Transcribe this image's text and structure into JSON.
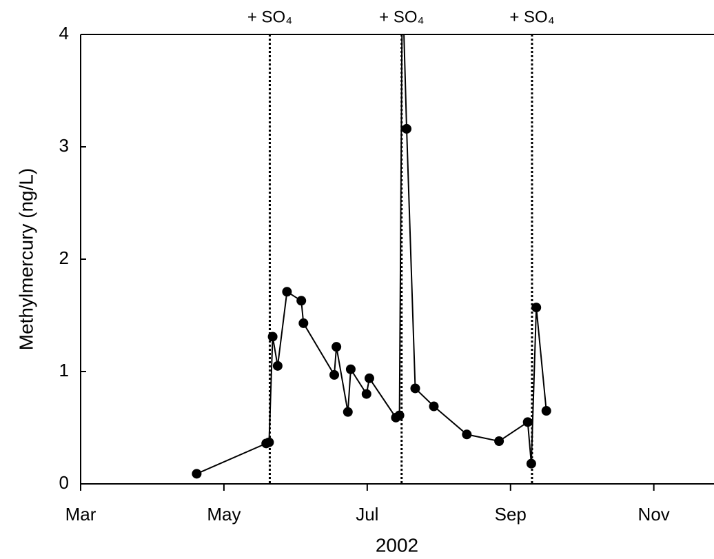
{
  "chart_data": {
    "type": "line",
    "x_label": "2002",
    "y_label": "Methylmercury (ng/L)",
    "xlim": [
      3,
      11.84
    ],
    "xticks": [
      {
        "value": 3,
        "label": "Mar"
      },
      {
        "value": 5,
        "label": "May"
      },
      {
        "value": 7,
        "label": "Jul"
      },
      {
        "value": 9,
        "label": "Sep"
      },
      {
        "value": 11,
        "label": "Nov"
      }
    ],
    "ylim": [
      0,
      4
    ],
    "yticks": [
      0,
      1,
      2,
      3,
      4
    ],
    "series": [
      {
        "color": "#000000",
        "x": [
          4.62,
          5.59,
          5.63,
          5.68,
          5.75,
          5.88,
          6.08,
          6.11,
          6.54,
          6.57,
          6.73,
          6.77,
          6.99,
          7.03,
          7.4,
          7.45,
          7.49,
          7.55,
          7.67,
          7.93,
          8.39,
          8.84,
          9.24,
          9.29,
          9.36,
          9.5
        ],
        "values": [
          0.09,
          0.36,
          0.37,
          1.31,
          1.05,
          1.71,
          1.63,
          1.43,
          0.97,
          1.22,
          0.64,
          1.02,
          0.8,
          0.94,
          0.59,
          0.61,
          4.5,
          3.16,
          0.85,
          0.69,
          0.44,
          0.38,
          0.55,
          0.18,
          1.57,
          0.65
        ]
      }
    ],
    "annotations": [
      {
        "x": 5.64,
        "label": "+ SO₄"
      },
      {
        "x": 7.48,
        "label": "+ SO₄"
      },
      {
        "x": 9.3,
        "label": "+ SO₄"
      }
    ]
  }
}
